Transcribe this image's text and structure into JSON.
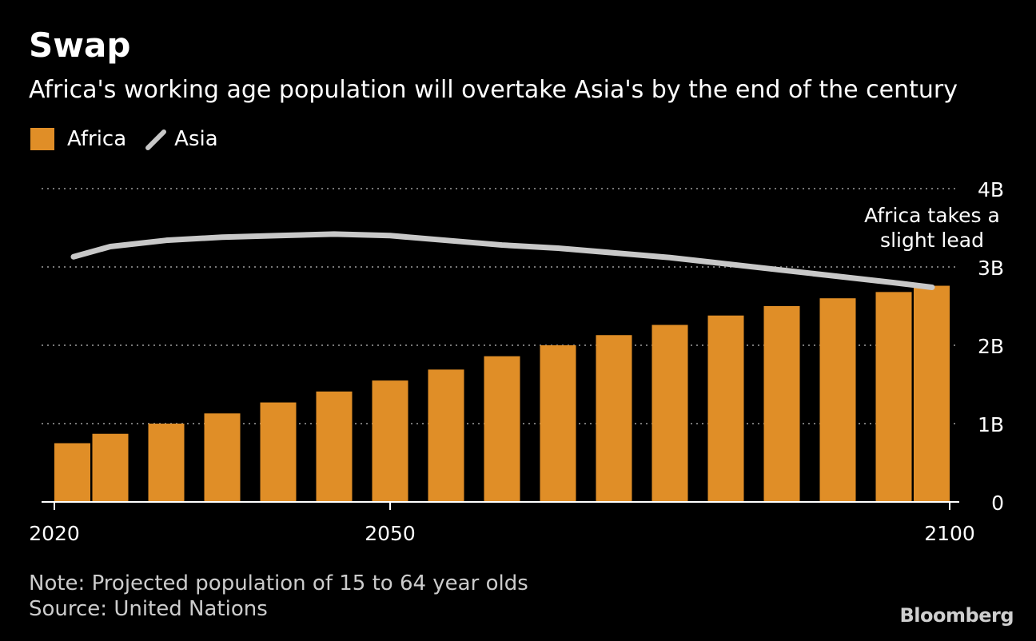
{
  "header": {
    "title": "Swap",
    "subtitle": "Africa's working age population will overtake Asia's by the end of the century"
  },
  "legend": {
    "items": [
      {
        "label": "Africa",
        "color": "#E08E27",
        "shape": "square-swatch"
      },
      {
        "label": "Asia",
        "color": "#C8C8C8",
        "shape": "line-swatch"
      }
    ]
  },
  "footer": {
    "note": "Note: Projected population of 15 to 64 year olds",
    "source": "Source: United Nations",
    "brand": "Bloomberg"
  },
  "colors": {
    "background": "#000000",
    "africa": "#E08E27",
    "asia": "#C8C8C8",
    "grid": "#777777",
    "axis": "#FFFFFF",
    "text": "#FFFFFF"
  },
  "chart_data": {
    "type": "bar",
    "categories": [
      2020,
      2025,
      2030,
      2035,
      2040,
      2045,
      2050,
      2055,
      2060,
      2065,
      2070,
      2075,
      2080,
      2085,
      2090,
      2095,
      2100
    ],
    "x_ticks": [
      "2020",
      "2050",
      "2100"
    ],
    "y_ticks": [
      "0",
      "1B",
      "2B",
      "3B",
      "4B"
    ],
    "y_tick_values": [
      0,
      1,
      2,
      3,
      4
    ],
    "ylim": [
      0,
      4
    ],
    "xlim": [
      2020,
      2100
    ],
    "y_unit": "billions",
    "y_axis_side": "right",
    "grid": true,
    "legend_placement": "top-left",
    "series": [
      {
        "name": "Africa",
        "type": "bar",
        "x": [
          2020,
          2025,
          2030,
          2035,
          2040,
          2045,
          2050,
          2055,
          2060,
          2065,
          2070,
          2075,
          2080,
          2085,
          2090,
          2095,
          2100
        ],
        "values": [
          0.75,
          0.87,
          1.0,
          1.13,
          1.27,
          1.41,
          1.55,
          1.69,
          1.86,
          2.0,
          2.13,
          2.26,
          2.38,
          2.5,
          2.6,
          2.68,
          2.76
        ]
      },
      {
        "name": "Asia",
        "type": "line",
        "x": [
          2020,
          2025,
          2030,
          2035,
          2040,
          2045,
          2050,
          2055,
          2060,
          2065,
          2070,
          2075,
          2080,
          2085,
          2090,
          2095,
          2100
        ],
        "values": [
          3.13,
          3.26,
          3.34,
          3.38,
          3.4,
          3.42,
          3.4,
          3.34,
          3.28,
          3.24,
          3.18,
          3.12,
          3.04,
          2.96,
          2.88,
          2.8,
          2.74
        ]
      }
    ],
    "annotations": [
      {
        "text_lines": [
          "Africa takes a",
          "slight lead"
        ],
        "x": 2100,
        "y": 3.5
      }
    ]
  }
}
